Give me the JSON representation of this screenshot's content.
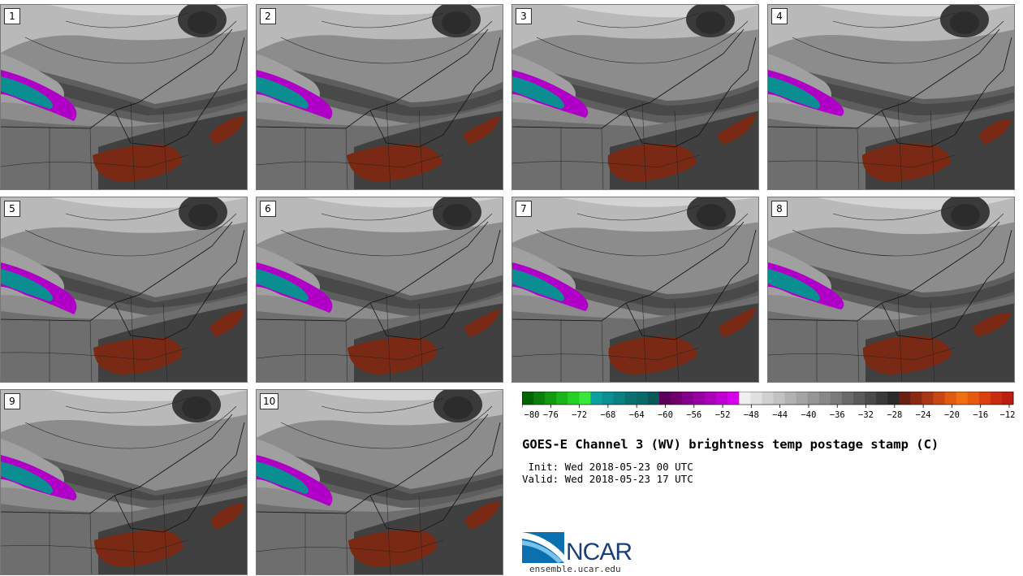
{
  "title": "GOES-E Channel 3 (WV) brightness temp postage stamp (C)",
  "init": " Init: Wed 2018-05-23 00 UTC",
  "valid": "Valid: Wed 2018-05-23 17 UTC",
  "site": "ensemble.ucar.edu",
  "logo_text": "NCAR",
  "panels": [
    {
      "label": "1"
    },
    {
      "label": "2"
    },
    {
      "label": "3"
    },
    {
      "label": "4"
    },
    {
      "label": "5"
    },
    {
      "label": "6"
    },
    {
      "label": "7"
    },
    {
      "label": "8"
    },
    {
      "label": "9"
    },
    {
      "label": "10"
    }
  ],
  "colorbar": {
    "ticks": [
      "−80",
      "−76",
      "−72",
      "−68",
      "−64",
      "−60",
      "−56",
      "−52",
      "−48",
      "−44",
      "−40",
      "−36",
      "−32",
      "−28",
      "−24",
      "−20",
      "−16",
      "−12"
    ],
    "colors": [
      "#006400",
      "#0a7f0a",
      "#129a12",
      "#1bb51b",
      "#26cf26",
      "#3ae83a",
      "#0aa0a0",
      "#0a9090",
      "#0a8080",
      "#0a7070",
      "#0a6868",
      "#0a5858",
      "#5a005a",
      "#6e006e",
      "#82008a",
      "#9600a0",
      "#aa00b8",
      "#c000d2",
      "#d800e8",
      "#f0f0f0",
      "#e0e0e0",
      "#d0d0d0",
      "#c2c2c2",
      "#b2b2b2",
      "#a4a4a4",
      "#969696",
      "#888888",
      "#7a7a7a",
      "#6a6a6a",
      "#5a5a5a",
      "#4a4a4a",
      "#3a3a3a",
      "#2a2a2a",
      "#6a1f10",
      "#882a12",
      "#a83714",
      "#c84515",
      "#e05a10",
      "#ee7010",
      "#e65a10",
      "#d84010",
      "#c82c10",
      "#b81f10"
    ]
  }
}
